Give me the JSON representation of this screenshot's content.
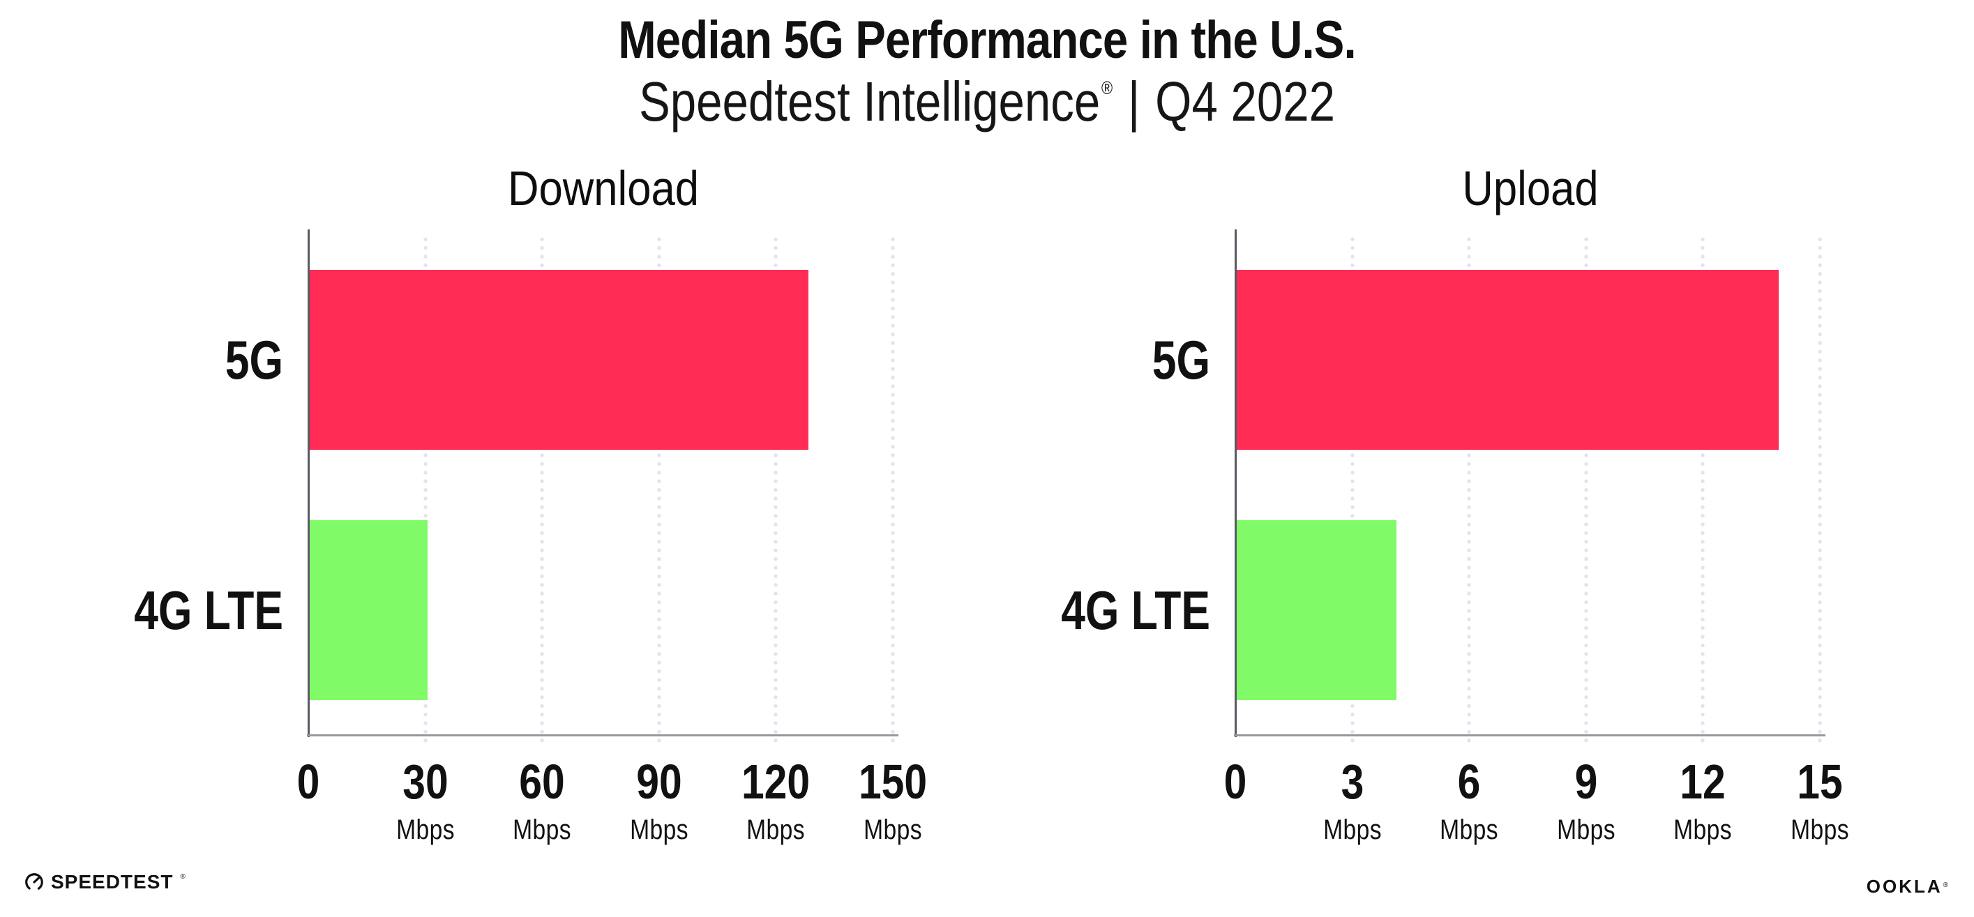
{
  "header": {
    "title": "Median 5G Performance in the U.S.",
    "subtitle": {
      "product": "Speedtest Intelligence",
      "reg_mark": "®",
      "separator": "|",
      "period": "Q4 2022"
    }
  },
  "footer": {
    "speedtest_wordmark": "SPEEDTEST",
    "speedtest_reg_mark": "®",
    "ookla_wordmark": "OOKLA",
    "ookla_reg_mark": "®"
  },
  "colors": {
    "bar_5g": "#FF2D55",
    "bar_4g_lte": "#80FA66",
    "grid_dot": "#E3E3EE",
    "x_axis_line": "#97979D",
    "y_axis_line": "#5A5A64",
    "text": "#111111"
  },
  "chart_data": [
    {
      "type": "bar",
      "orientation": "horizontal",
      "title": "Download",
      "categories": [
        "5G",
        "4G LTE"
      ],
      "values": [
        128,
        30.2
      ],
      "unit": "Mbps",
      "xlabel": "",
      "ylabel": "",
      "xlim": [
        0,
        150
      ],
      "xticks": [
        0,
        30,
        60,
        90,
        120,
        150
      ],
      "grid": "dotted-vertical",
      "legend": "none",
      "bar_colors": [
        "#FF2D55",
        "#80FA66"
      ]
    },
    {
      "type": "bar",
      "orientation": "horizontal",
      "title": "Upload",
      "categories": [
        "5G",
        "4G LTE"
      ],
      "values": [
        13.9,
        4.1
      ],
      "unit": "Mbps",
      "xlabel": "",
      "ylabel": "",
      "xlim": [
        0,
        15
      ],
      "xticks": [
        0,
        3,
        6,
        9,
        12,
        15
      ],
      "grid": "dotted-vertical",
      "legend": "none",
      "bar_colors": [
        "#FF2D55",
        "#80FA66"
      ]
    }
  ]
}
